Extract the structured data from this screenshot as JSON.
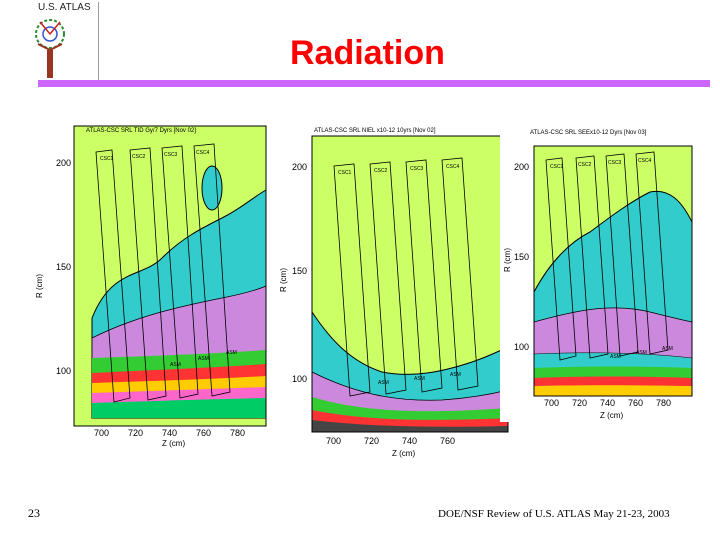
{
  "header": {
    "logo_text": "U.S. ATLAS",
    "title": "Radiation"
  },
  "footer": {
    "page_number": "23",
    "text": "DOE/NSF Review of U.S. ATLAS May 21-23, 2003"
  },
  "colors": {
    "title": "#ff0000",
    "rule": "#cc66ff",
    "plot_bg": "#ccff66",
    "cyan": "#33cccc",
    "purple": "#cc88dd"
  },
  "plots": [
    {
      "header": "ATLAS-CSC SRL TID Gy/7 Dyrs [Nov 02]",
      "y_ticks": [
        "200",
        "150",
        "100"
      ],
      "x_ticks": [
        "700",
        "720",
        "740",
        "760",
        "780"
      ],
      "x_label": "Z (cm)",
      "y_label": "R (cm)",
      "chamber_labels": [
        "CSC1",
        "CSC2",
        "CSC3",
        "CSC4"
      ],
      "asm_labels": [
        "ASM",
        "ASM",
        "ASM"
      ]
    },
    {
      "header": "ATLAS-CSC SRL NIEL x10-12 10yrs [Nov 02]",
      "y_ticks": [
        "200",
        "150",
        "100"
      ],
      "x_ticks": [
        "700",
        "720",
        "740",
        "760"
      ],
      "x_label": "Z (cm)",
      "y_label": "R (cm)",
      "chamber_labels": [
        "CSC1",
        "CSC2",
        "CSC3",
        "CSC4"
      ],
      "asm_labels": [
        "ASM",
        "ASM",
        "ASM"
      ]
    },
    {
      "header": "ATLAS-CSC SRL SEEx10-12 Dyrs [Nov 03]",
      "y_ticks": [
        "200",
        "150",
        "100"
      ],
      "x_ticks": [
        "700",
        "720",
        "740",
        "760",
        "780"
      ],
      "x_label": "Z (cm)",
      "y_label": "R (cm)",
      "chamber_labels": [
        "CSC1",
        "CSC2",
        "CSC3",
        "CSC4"
      ],
      "asm_labels": [
        "ASM",
        "ASM",
        "ASM"
      ]
    }
  ]
}
